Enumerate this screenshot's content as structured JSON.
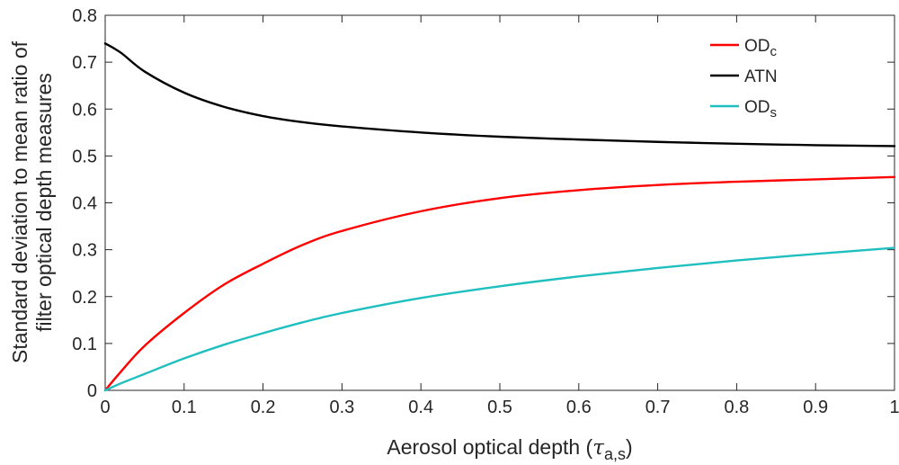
{
  "chart_data": {
    "type": "line",
    "xlabel": "Aerosol optical depth (",
    "xlabel_symbol": "τ",
    "xlabel_subscript": "a,s",
    "xlabel_close": ")",
    "ylabel_line1": "Standard deviation to mean ratio of",
    "ylabel_line2": "filter optical depth measures",
    "xlim": [
      0,
      1
    ],
    "ylim": [
      0,
      0.8
    ],
    "xticks": [
      "0",
      "0.1",
      "0.2",
      "0.3",
      "0.4",
      "0.5",
      "0.6",
      "0.7",
      "0.8",
      "0.9",
      "1"
    ],
    "yticks": [
      "0",
      "0.1",
      "0.2",
      "0.3",
      "0.4",
      "0.5",
      "0.6",
      "0.7",
      "0.8"
    ],
    "grid": false,
    "legend_position": "top-right",
    "x": [
      0,
      0.02,
      0.05,
      0.1,
      0.15,
      0.2,
      0.25,
      0.3,
      0.4,
      0.5,
      0.6,
      0.7,
      0.8,
      0.9,
      1.0
    ],
    "series": [
      {
        "name": "OD",
        "subscript": "c",
        "color": "#ff0000",
        "values": [
          0,
          0.04,
          0.095,
          0.165,
          0.225,
          0.27,
          0.31,
          0.34,
          0.382,
          0.41,
          0.427,
          0.438,
          0.445,
          0.45,
          0.455
        ]
      },
      {
        "name": "ATN",
        "subscript": "",
        "color": "#000000",
        "values": [
          0.74,
          0.72,
          0.68,
          0.635,
          0.605,
          0.585,
          0.572,
          0.563,
          0.55,
          0.541,
          0.535,
          0.53,
          0.526,
          0.523,
          0.521
        ]
      },
      {
        "name": "OD",
        "subscript": "s",
        "color": "#1fbfbf",
        "values": [
          0,
          0.015,
          0.035,
          0.068,
          0.097,
          0.122,
          0.145,
          0.165,
          0.197,
          0.222,
          0.243,
          0.261,
          0.277,
          0.291,
          0.304
        ]
      }
    ]
  }
}
